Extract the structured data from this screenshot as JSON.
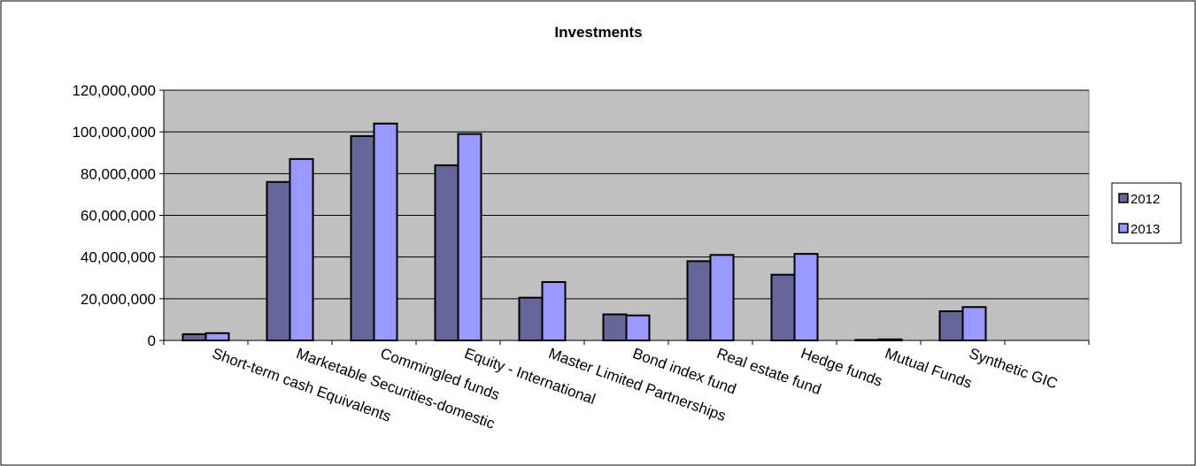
{
  "chart_data": {
    "type": "bar",
    "title": "Investments",
    "xlabel": "",
    "ylabel": "",
    "ylim": [
      0,
      120000000
    ],
    "ytick_step": 20000000,
    "yticks": [
      "0",
      "20,000,000",
      "40,000,000",
      "60,000,000",
      "80,000,000",
      "100,000,000",
      "120,000,000"
    ],
    "grid": true,
    "legend_position": "right",
    "categories": [
      "Short-term cash Equivalents",
      "Marketable Securities-domestic",
      "Commingled funds",
      "Equity - International",
      "Master Limited Partnerships",
      "Bond index fund",
      "Real estate fund",
      "Hedge funds",
      "Mutual Funds",
      "Synthetic GIC"
    ],
    "series": [
      {
        "name": "2012",
        "color": "#666699",
        "values": [
          3000000,
          76000000,
          98000000,
          84000000,
          20500000,
          12500000,
          38000000,
          31500000,
          200000,
          14000000
        ]
      },
      {
        "name": "2013",
        "color": "#9999ff",
        "values": [
          3500000,
          87000000,
          104000000,
          99000000,
          28000000,
          12000000,
          41000000,
          41500000,
          500000,
          16000000
        ]
      }
    ],
    "plot_background": "#c0c0c0"
  }
}
